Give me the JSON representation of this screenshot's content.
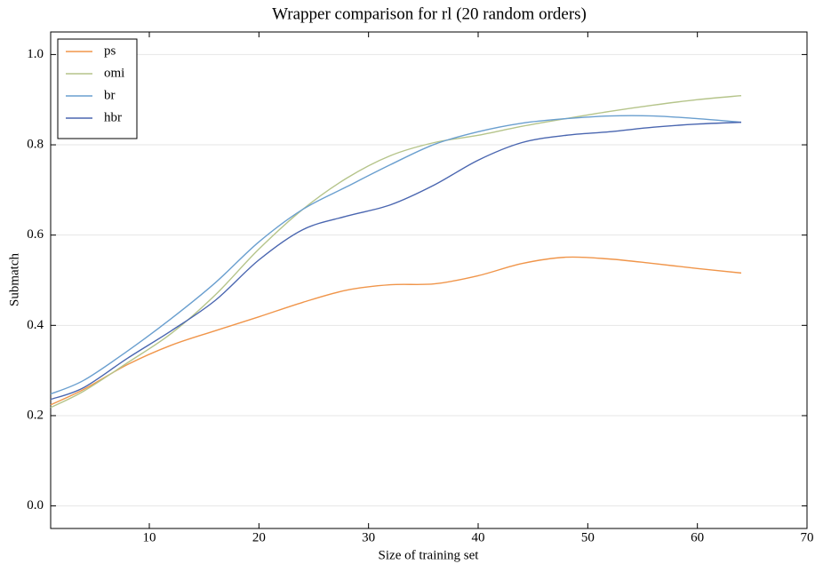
{
  "chart_data": {
    "type": "line",
    "title": "Wrapper comparison for rl (20 random orders)",
    "x_label": "Size of training set",
    "y_label": "Submatch",
    "x": [
      1,
      4,
      8,
      12,
      16,
      20,
      24,
      28,
      32,
      36,
      40,
      44,
      48,
      52,
      56,
      60,
      64
    ],
    "series": [
      {
        "name": "ps",
        "color": "#f0954a",
        "values": [
          0.224,
          0.258,
          0.313,
          0.356,
          0.388,
          0.419,
          0.451,
          0.478,
          0.49,
          0.492,
          0.51,
          0.537,
          0.551,
          0.547,
          0.537,
          0.526,
          0.516
        ]
      },
      {
        "name": "omi",
        "color": "#b5c48a",
        "values": [
          0.218,
          0.254,
          0.317,
          0.382,
          0.467,
          0.569,
          0.657,
          0.726,
          0.776,
          0.805,
          0.821,
          0.841,
          0.858,
          0.874,
          0.888,
          0.9,
          0.909
        ]
      },
      {
        "name": "br",
        "color": "#6a9fcf",
        "values": [
          0.248,
          0.278,
          0.343,
          0.415,
          0.494,
          0.585,
          0.657,
          0.707,
          0.756,
          0.801,
          0.829,
          0.848,
          0.858,
          0.864,
          0.864,
          0.858,
          0.85
        ]
      },
      {
        "name": "hbr",
        "color": "#4a66b0",
        "values": [
          0.236,
          0.262,
          0.327,
          0.388,
          0.455,
          0.545,
          0.612,
          0.642,
          0.667,
          0.711,
          0.766,
          0.805,
          0.821,
          0.829,
          0.839,
          0.846,
          0.85
        ]
      }
    ],
    "xlim": [
      1,
      70
    ],
    "ylim": [
      -0.05,
      1.05
    ],
    "xticks": [
      10,
      20,
      30,
      40,
      50,
      60,
      70
    ],
    "yticks": [
      {
        "value": 0,
        "label": "0.0"
      },
      0.2,
      0.4,
      0.6,
      0.8,
      {
        "value": 1,
        "label": "1.0"
      }
    ],
    "grid": true,
    "legend": "upper-left"
  }
}
